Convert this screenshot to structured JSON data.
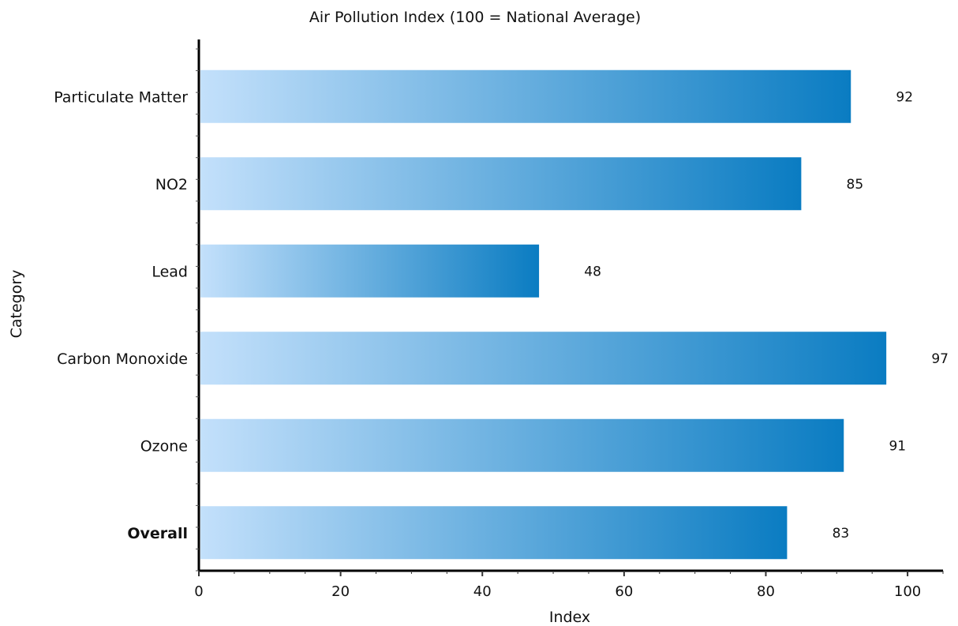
{
  "chart_data": {
    "type": "bar",
    "orientation": "horizontal",
    "title": "Air Pollution Index (100 = National Average)",
    "xlabel": "Index",
    "ylabel": "Category",
    "categories": [
      "Particulate Matter",
      "NO2",
      "Lead",
      "Carbon Monoxide",
      "Ozone",
      "Overall"
    ],
    "values": [
      92,
      85,
      48,
      97,
      91,
      83
    ],
    "value_labels": [
      "92",
      "85",
      "48",
      "97",
      "91",
      "83"
    ],
    "bold_categories": [
      "Overall"
    ],
    "xlim": [
      0,
      105
    ],
    "x_ticks": [
      0,
      20,
      40,
      60,
      80,
      100
    ],
    "x_tick_labels": [
      "0",
      "20",
      "40",
      "60",
      "80",
      "100"
    ],
    "grid": false,
    "legend": "none",
    "bar_gradient": [
      "#c3e0fb",
      "#0a7cc2"
    ],
    "axis_color": "#000000"
  }
}
